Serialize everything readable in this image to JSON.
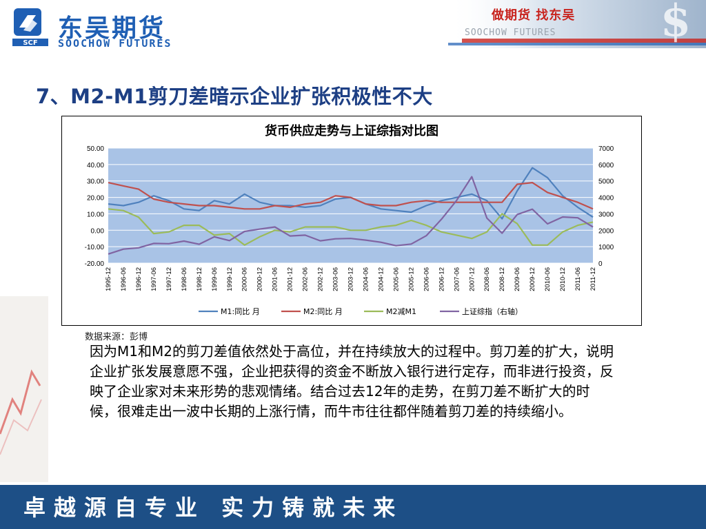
{
  "header": {
    "brand_cn": "东吴期货",
    "brand_en": "SOOCHOW FUTURES",
    "logo_text": "SCF",
    "slogan_cn": "做期货 找东吴",
    "slogan_en": "SOOCHOW FUTURES"
  },
  "title": "7、M2-M1剪刀差暗示企业扩张积极性不大",
  "source": "数据来源：彭博",
  "paragraph": "因为M1和M2的剪刀差值依然处于高位，并在持续放大的过程中。剪刀差的扩大，说明企业扩张发展意愿不强，企业把获得的资金不断放入银行进行定存，而非进行投资，反映了企业家对未来形势的悲观情绪。结合过去12年的走势，在剪刀差不断扩大的时候，很难走出一波中长期的上涨行情，而牛市往往都伴随着剪刀差的持续缩小。",
  "footer": {
    "slogan": "卓越源自专业 实力铸就未来"
  },
  "colors": {
    "m1": "#4f81bd",
    "m2": "#c0504d",
    "gap": "#9bbb59",
    "sh": "#8064a2",
    "plot_bg": "#a9c3e6"
  },
  "chart_data": {
    "type": "line",
    "title": "货币供应走势与上证综指对比图",
    "x": [
      "1995-12",
      "1996-06",
      "1996-12",
      "1997-06",
      "1997-12",
      "1998-06",
      "1998-12",
      "1999-06",
      "1999-12",
      "2000-06",
      "2000-12",
      "2001-06",
      "2001-12",
      "2002-06",
      "2002-12",
      "2003-06",
      "2003-12",
      "2004-06",
      "2004-12",
      "2005-06",
      "2005-12",
      "2006-06",
      "2006-12",
      "2007-06",
      "2007-12",
      "2008-06",
      "2008-12",
      "2009-06",
      "2009-12",
      "2010-06",
      "2010-12",
      "2011-06",
      "2011-12"
    ],
    "y_left": {
      "min": -20,
      "max": 50,
      "ticks": [
        "-20.00",
        "-10.00",
        "0.00",
        "10.00",
        "20.00",
        "30.00",
        "40.00",
        "50.00"
      ]
    },
    "y_right": {
      "min": 0,
      "max": 7000,
      "ticks": [
        "0",
        "1000",
        "2000",
        "3000",
        "4000",
        "5000",
        "6000",
        "7000"
      ]
    },
    "series": [
      {
        "name": "M1:同比 月",
        "axis": "left",
        "values": [
          16,
          15,
          17,
          21,
          18,
          13,
          12,
          18,
          16,
          22,
          17,
          15,
          15,
          14,
          15,
          19,
          20,
          16,
          13,
          12,
          11,
          15,
          18,
          20,
          22,
          18,
          7,
          24,
          38,
          32,
          21,
          14,
          8
        ]
      },
      {
        "name": "M2:同比 月",
        "axis": "left",
        "values": [
          29,
          27,
          25,
          19,
          17,
          16,
          15,
          15,
          14,
          13,
          13,
          15,
          14,
          16,
          17,
          21,
          20,
          16,
          15,
          15,
          17,
          18,
          17,
          17,
          17,
          17,
          17,
          28,
          29,
          23,
          20,
          17,
          13
        ]
      },
      {
        "name": "M2减M1",
        "axis": "left",
        "values": [
          13,
          12,
          8,
          -2,
          -1,
          3,
          3,
          -3,
          -2,
          -9,
          -4,
          0,
          -1,
          2,
          2,
          2,
          0,
          0,
          2,
          3,
          6,
          3,
          -1,
          -3,
          -5,
          -1,
          10,
          4,
          -9,
          -9,
          -1,
          3,
          5
        ]
      },
      {
        "name": "上证综指（右轴）",
        "axis": "right",
        "values": [
          555,
          850,
          930,
          1200,
          1180,
          1340,
          1150,
          1600,
          1370,
          1930,
          2070,
          2200,
          1650,
          1700,
          1360,
          1480,
          1500,
          1400,
          1270,
          1060,
          1160,
          1670,
          2670,
          3820,
          5260,
          2740,
          1820,
          2960,
          3280,
          2390,
          2810,
          2760,
          2200
        ]
      }
    ]
  }
}
